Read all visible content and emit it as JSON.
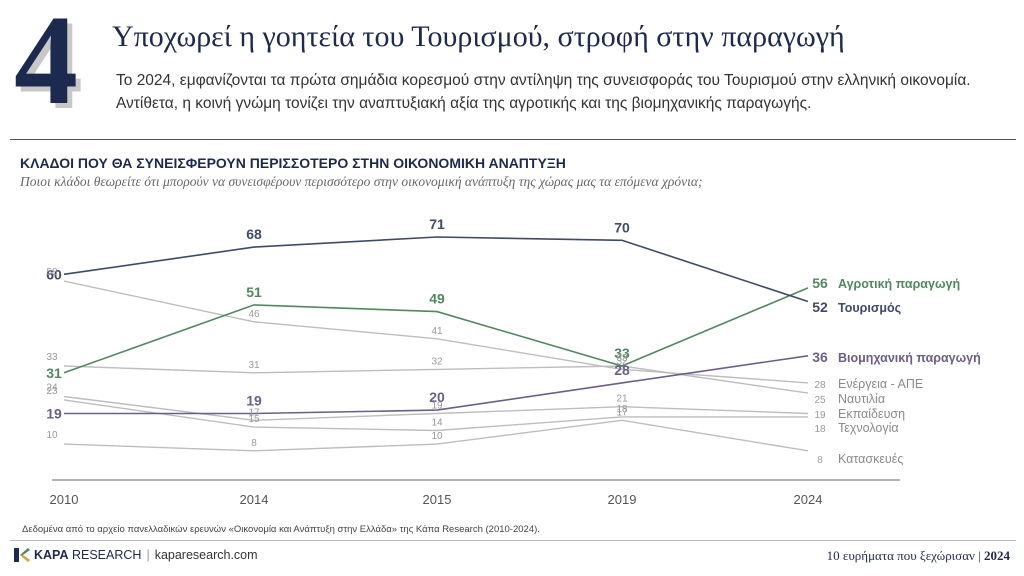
{
  "page": {
    "number": "4",
    "title": "Υποχωρεί η γοητεία του Τουρισμού, στροφή στην παραγωγή",
    "subtitle": "Το 2024, εμφανίζονται τα πρώτα σημάδια κορεσμού στην αντίληψη της συνεισφοράς του Τουρισμού στην ελληνική οικονομία. Αντίθετα, η κοινή γνώμη τονίζει την αναπτυξιακή αξία της αγροτικής και της βιομηχανικής παραγωγής."
  },
  "chart_data": {
    "type": "line",
    "title": "ΚΛΑΔΟΙ ΠΟΥ ΘΑ ΣΥΝΕΙΣΦΕΡΟΥΝ ΠΕΡΙΣΣΟΤΕΡΟ ΣΤΗΝ ΟΙΚΟΝΟΜΙΚΗ ΑΝΑΠΤΥΞΗ",
    "subtitle": "Ποιοι κλάδοι θεωρείτε ότι μπορούν να συνεισφέρουν περισσότερο στην οικονομική ανάπτυξη της χώρας μας τα επόμενα χρόνια;",
    "x": [
      "2010",
      "2014",
      "2015",
      "2019",
      "2024"
    ],
    "ylim": [
      0,
      80
    ],
    "grid": false,
    "legend": "right-end labels",
    "series": [
      {
        "name": "Αγροτική παραγωγή",
        "values": [
          31,
          51,
          49,
          33,
          56
        ],
        "color": "#4e8a5c",
        "highlight": true
      },
      {
        "name": "Τουρισμός",
        "values": [
          60,
          68,
          71,
          70,
          52
        ],
        "color": "#3d4a6b",
        "highlight": true
      },
      {
        "name": "Βιομηχανική παραγωγή",
        "values": [
          19,
          19,
          20,
          28,
          36
        ],
        "color": "#6a5f8c",
        "highlight": true
      },
      {
        "name": "Ενέργεια - ΑΠΕ",
        "values": [
          58,
          46,
          41,
          32,
          28
        ],
        "color": "#bdbdbd",
        "highlight": false
      },
      {
        "name": "Ναυτιλία",
        "values": [
          33,
          31,
          32,
          33,
          25
        ],
        "color": "#bdbdbd",
        "highlight": false
      },
      {
        "name": "Εκπαίδευση",
        "values": [
          24,
          17,
          19,
          21,
          19
        ],
        "color": "#bdbdbd",
        "highlight": false
      },
      {
        "name": "Τεχνολογία",
        "values": [
          23,
          15,
          14,
          18,
          18
        ],
        "color": "#bdbdbd",
        "highlight": false
      },
      {
        "name": "Κατασκευές",
        "values": [
          10,
          8,
          10,
          17,
          8
        ],
        "color": "#bdbdbd",
        "highlight": false
      }
    ]
  },
  "footer": {
    "source": "Δεδομένα από το αρχείο πανελλαδικών ερευνών «Οικονομία και Ανάπτυξη στην Ελλάδα» της Κάπα Research (2010-2024).",
    "brand_strong": "KAPA",
    "brand_rest": "RESEARCH",
    "site": "kaparesearch.com",
    "series_label": "10 ευρήματα που ξεχώρισαν",
    "year": "2024"
  }
}
